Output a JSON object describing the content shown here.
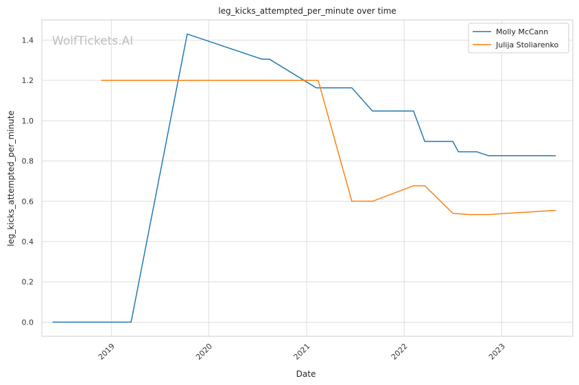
{
  "chart_data": {
    "type": "line",
    "title": "leg_kicks_attempted_per_minute over time",
    "xlabel": "Date",
    "ylabel": "leg_kicks_attempted_per_minute",
    "watermark": "WolfTickets.AI",
    "x_ticks": [
      "2019",
      "2020",
      "2021",
      "2022",
      "2023"
    ],
    "y_ticks": [
      "0.0",
      "0.2",
      "0.4",
      "0.6",
      "0.8",
      "1.0",
      "1.2",
      "1.4"
    ],
    "ylim": [
      -0.07,
      1.5
    ],
    "xlim": [
      "2018-04-16",
      "2023-09-24"
    ],
    "grid": true,
    "legend_position": "top-right",
    "series": [
      {
        "name": "Molly McCann",
        "color": "#1f77b4",
        "points": [
          {
            "x": "2018-05-26",
            "y": 0.0
          },
          {
            "x": "2019-03-16",
            "y": 0.0
          },
          {
            "x": "2019-10-12",
            "y": 1.43
          },
          {
            "x": "2020-07-18",
            "y": 1.305
          },
          {
            "x": "2020-08-15",
            "y": 1.305
          },
          {
            "x": "2021-02-06",
            "y": 1.163
          },
          {
            "x": "2021-06-19",
            "y": 1.163
          },
          {
            "x": "2021-09-04",
            "y": 1.048
          },
          {
            "x": "2022-02-05",
            "y": 1.048
          },
          {
            "x": "2022-03-19",
            "y": 0.897
          },
          {
            "x": "2022-07-02",
            "y": 0.897
          },
          {
            "x": "2022-07-23",
            "y": 0.845
          },
          {
            "x": "2022-10-01",
            "y": 0.845
          },
          {
            "x": "2022-11-12",
            "y": 0.826
          },
          {
            "x": "2023-07-22",
            "y": 0.826
          }
        ]
      },
      {
        "name": "Julija Stoliarenko",
        "color": "#ff7f0e",
        "points": [
          {
            "x": "2018-11-24",
            "y": 1.2
          },
          {
            "x": "2021-02-13",
            "y": 1.2
          },
          {
            "x": "2021-06-19",
            "y": 0.6
          },
          {
            "x": "2021-09-04",
            "y": 0.6
          },
          {
            "x": "2022-02-05",
            "y": 0.677
          },
          {
            "x": "2022-03-19",
            "y": 0.677
          },
          {
            "x": "2022-07-02",
            "y": 0.54
          },
          {
            "x": "2022-09-03",
            "y": 0.534
          },
          {
            "x": "2022-11-12",
            "y": 0.534
          },
          {
            "x": "2023-07-22",
            "y": 0.555
          }
        ]
      }
    ]
  }
}
